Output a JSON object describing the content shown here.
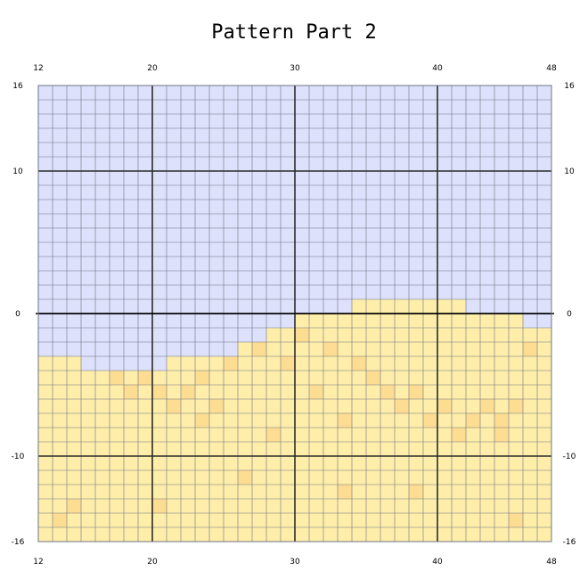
{
  "title": "Pattern Part 2",
  "colors": {
    "sky": "#dde1fb",
    "sand": "#ffeeaa",
    "sand_dark": "#fddd91",
    "grid_minor": "#6e7384",
    "grid_major": "#2b2b2b"
  },
  "chart_data": {
    "type": "grid-pattern",
    "title": "Pattern Part 2",
    "x_range": [
      12,
      48
    ],
    "y_range": [
      -16,
      16
    ],
    "x_ticks": [
      12,
      20,
      30,
      40,
      48
    ],
    "y_ticks": [
      16,
      10,
      0,
      -10,
      -16
    ],
    "x_tick_labels": [
      "12",
      "20",
      "30",
      "40",
      "48"
    ],
    "y_tick_labels": [
      "16",
      "10",
      "0",
      "-10",
      "-16"
    ],
    "major_lines_x": [
      20,
      30,
      40
    ],
    "major_lines_y": [
      10,
      0,
      -10
    ],
    "sand_top_by_column": [
      -3,
      -3,
      -3,
      -4,
      -4,
      -4,
      -4,
      -4,
      -4,
      -3,
      -3,
      -3,
      -3,
      -3,
      -2,
      -2,
      -1,
      -1,
      0,
      0,
      0,
      0,
      1,
      1,
      1,
      1,
      1,
      1,
      1,
      1,
      0,
      0,
      0,
      0,
      -1,
      -1
    ],
    "darker_sand_cells": [
      [
        13,
        -14
      ],
      [
        14,
        -13
      ],
      [
        17,
        -4
      ],
      [
        18,
        -5
      ],
      [
        19,
        -4
      ],
      [
        20,
        -5
      ],
      [
        21,
        -6
      ],
      [
        22,
        -5
      ],
      [
        23,
        -7
      ],
      [
        23,
        -4
      ],
      [
        24,
        -6
      ],
      [
        25,
        -3
      ],
      [
        27,
        -2
      ],
      [
        28,
        -8
      ],
      [
        29,
        -3
      ],
      [
        30,
        -1
      ],
      [
        31,
        -5
      ],
      [
        32,
        -2
      ],
      [
        33,
        -7
      ],
      [
        34,
        -3
      ],
      [
        35,
        -4
      ],
      [
        36,
        -5
      ],
      [
        37,
        -6
      ],
      [
        38,
        -5
      ],
      [
        39,
        -7
      ],
      [
        40,
        -6
      ],
      [
        41,
        -8
      ],
      [
        42,
        -7
      ],
      [
        43,
        -6
      ],
      [
        44,
        -8
      ],
      [
        44,
        -7
      ],
      [
        45,
        -6
      ],
      [
        46,
        -2
      ],
      [
        20,
        -13
      ],
      [
        26,
        -11
      ],
      [
        33,
        -12
      ],
      [
        38,
        -12
      ],
      [
        45,
        -14
      ]
    ]
  }
}
